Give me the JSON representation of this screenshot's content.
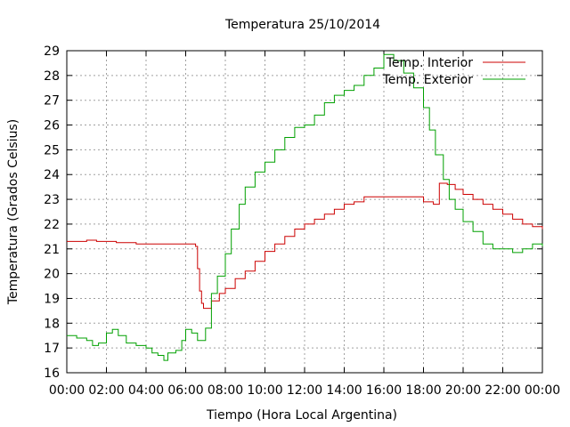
{
  "chart_data": {
    "type": "line",
    "title": "Temperatura 25/10/2014",
    "xlabel": "Tiempo (Hora Local Argentina)",
    "ylabel": "Temperatura (Grados Celsius)",
    "xlim": [
      0,
      24
    ],
    "ylim": [
      16,
      29
    ],
    "x_ticks": [
      0,
      2,
      4,
      6,
      8,
      10,
      12,
      14,
      16,
      18,
      20,
      22,
      24
    ],
    "x_tick_labels": [
      "00:00",
      "02:00",
      "04:00",
      "06:00",
      "08:00",
      "10:00",
      "12:00",
      "14:00",
      "16:00",
      "18:00",
      "20:00",
      "22:00",
      "00:00"
    ],
    "y_ticks": [
      16,
      17,
      18,
      19,
      20,
      21,
      22,
      23,
      24,
      25,
      26,
      27,
      28,
      29
    ],
    "grid": true,
    "legend_position": "top-right",
    "series": [
      {
        "name": "Temp. Interior",
        "color": "#cc0000",
        "x": [
          0,
          0.5,
          1,
          1.5,
          2,
          2.5,
          3,
          3.5,
          4,
          5,
          6,
          6.5,
          6.6,
          6.7,
          6.8,
          6.9,
          7.0,
          7.3,
          7.7,
          8.0,
          8.5,
          9.0,
          9.5,
          10.0,
          10.5,
          11.0,
          11.5,
          12.0,
          12.5,
          13.0,
          13.5,
          14.0,
          14.5,
          15.0,
          16.0,
          17.0,
          17.5,
          18.0,
          18.5,
          18.8,
          19.2,
          19.6,
          20.0,
          20.5,
          21.0,
          21.5,
          22.0,
          22.5,
          23.0,
          23.5,
          24.0
        ],
        "values": [
          21.3,
          21.3,
          21.35,
          21.3,
          21.3,
          21.25,
          21.25,
          21.2,
          21.2,
          21.2,
          21.2,
          21.1,
          20.2,
          19.3,
          18.8,
          18.6,
          18.6,
          18.9,
          19.2,
          19.4,
          19.8,
          20.1,
          20.5,
          20.9,
          21.2,
          21.5,
          21.8,
          22.0,
          22.2,
          22.4,
          22.6,
          22.8,
          22.9,
          23.1,
          23.1,
          23.1,
          23.1,
          22.9,
          22.8,
          23.65,
          23.6,
          23.4,
          23.2,
          23.0,
          22.8,
          22.6,
          22.4,
          22.2,
          22.0,
          21.9,
          21.8
        ]
      },
      {
        "name": "Temp. Exterior",
        "color": "#00a000",
        "x": [
          0,
          0.5,
          1,
          1.3,
          1.6,
          2.0,
          2.3,
          2.6,
          3.0,
          3.5,
          4.0,
          4.3,
          4.6,
          4.9,
          5.1,
          5.5,
          5.8,
          6.0,
          6.3,
          6.6,
          6.8,
          7.0,
          7.3,
          7.6,
          8.0,
          8.3,
          8.7,
          9.0,
          9.5,
          10.0,
          10.5,
          11.0,
          11.5,
          12.0,
          12.5,
          13.0,
          13.5,
          14.0,
          14.5,
          15.0,
          15.5,
          16.0,
          16.5,
          17.0,
          17.5,
          18.0,
          18.3,
          18.6,
          19.0,
          19.3,
          19.6,
          20.0,
          20.5,
          21.0,
          21.5,
          22.0,
          22.5,
          23.0,
          23.5,
          24.0
        ],
        "values": [
          17.5,
          17.4,
          17.3,
          17.1,
          17.2,
          17.6,
          17.75,
          17.5,
          17.2,
          17.1,
          17.0,
          16.8,
          16.7,
          16.5,
          16.8,
          16.9,
          17.3,
          17.75,
          17.6,
          17.3,
          17.3,
          17.8,
          19.2,
          19.9,
          20.8,
          21.8,
          22.8,
          23.5,
          24.1,
          24.5,
          25.0,
          25.5,
          25.9,
          26.0,
          26.4,
          26.9,
          27.2,
          27.4,
          27.6,
          28.0,
          28.3,
          28.85,
          28.6,
          28.1,
          27.5,
          26.7,
          25.8,
          24.8,
          23.8,
          23.0,
          22.6,
          22.1,
          21.7,
          21.2,
          21.0,
          21.0,
          20.85,
          21.0,
          21.2,
          21.1
        ]
      }
    ]
  }
}
